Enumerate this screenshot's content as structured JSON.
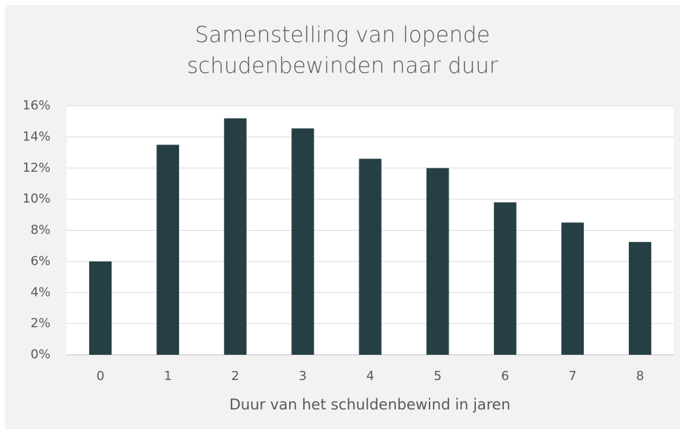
{
  "chart_data": {
    "type": "bar",
    "title": "Samenstelling van lopende schudenbewinden naar duur",
    "x_label": "Duur van het schuldenbewind in jaren",
    "categories": [
      "0",
      "1",
      "2",
      "3",
      "4",
      "5",
      "6",
      "7",
      "8"
    ],
    "values": [
      6.0,
      13.5,
      15.2,
      14.55,
      12.6,
      12.0,
      9.8,
      8.5,
      7.25
    ],
    "color": "#253f45",
    "ylim": [
      0,
      16
    ],
    "yticks": [
      {
        "value": 0,
        "label": "0%"
      },
      {
        "value": 2,
        "label": "2%"
      },
      {
        "value": 4,
        "label": "4%"
      },
      {
        "value": 6,
        "label": "6%"
      },
      {
        "value": 8,
        "label": "8%"
      },
      {
        "value": 10,
        "label": "10%"
      },
      {
        "value": 12,
        "label": "12%"
      },
      {
        "value": 14,
        "label": "14%"
      },
      {
        "value": 16,
        "label": "16%"
      }
    ],
    "grid": true
  }
}
